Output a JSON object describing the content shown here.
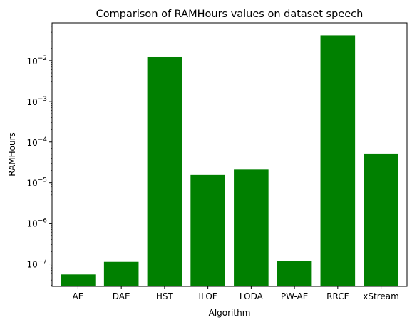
{
  "chart_data": {
    "type": "bar",
    "title": "Comparison of RAMHours values on dataset speech",
    "xlabel": "Algorithm",
    "ylabel": "RAMHours",
    "categories": [
      "AE",
      "DAE",
      "HST",
      "ILOF",
      "LODA",
      "PW-AE",
      "RRCF",
      "xStream"
    ],
    "values": [
      5.5e-08,
      1.12e-07,
      0.0122,
      1.55e-05,
      2.1e-05,
      1.18e-07,
      0.042,
      5.2e-05
    ],
    "yscale": "log",
    "ylim": [
      2.8e-08,
      0.085
    ],
    "ytick_labels": [
      "10^-7",
      "10^-6",
      "10^-5",
      "10^-4",
      "10^-3",
      "10^-2"
    ],
    "bar_color": "#008000",
    "grid": false,
    "legend": "none"
  }
}
